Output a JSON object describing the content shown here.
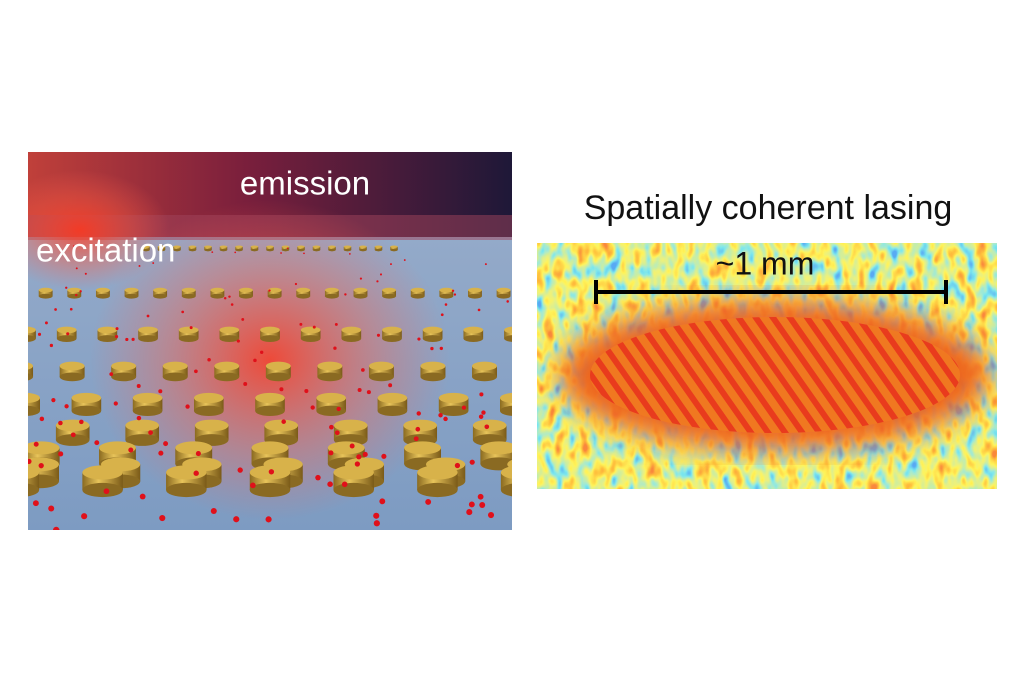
{
  "left_panel": {
    "emission_label": "emission",
    "excitation_label": "excitation"
  },
  "right_panel": {
    "title": "Spatially coherent lasing",
    "scale_bar_label": "~1 mm"
  }
}
